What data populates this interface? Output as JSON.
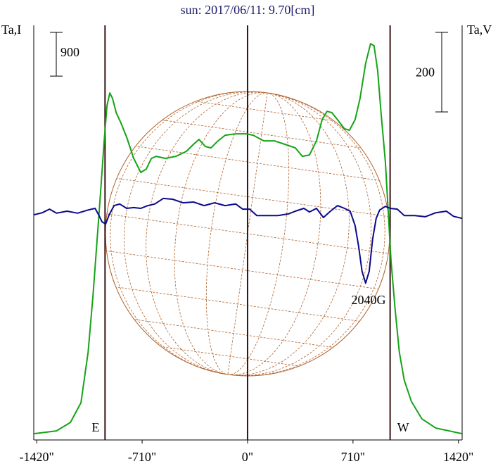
{
  "chart_data": {
    "type": "line",
    "title": "sun: 2017/06/11: 9.70[cm]",
    "ylabel": "Ta,I",
    "y2label": "Ta,V",
    "xlim": [
      -1440,
      1445
    ],
    "xticks": [
      {
        "value": -1420,
        "label": "-1420\""
      },
      {
        "value": -710,
        "label": "-710\""
      },
      {
        "value": 0,
        "label": "0\""
      },
      {
        "value": 710,
        "label": "710\""
      },
      {
        "value": 1420,
        "label": "1420\""
      }
    ],
    "ylim": [
      -100,
      8440
    ],
    "y2lim": [
      -566,
      476
    ],
    "scale_bars": [
      {
        "value": 900,
        "axis": "y"
      },
      {
        "value": 200,
        "axis": "y2"
      }
    ],
    "markers": [
      {
        "x": -960,
        "label": "E"
      },
      {
        "x": 0
      },
      {
        "x": 960,
        "label": "W"
      }
    ],
    "annotation": "2040G",
    "series": [
      {
        "name": "Ta,I",
        "color": "#16a316",
        "x": [
          -1439,
          -1287,
          -1193,
          -1122,
          -1074,
          -1041,
          -1013,
          -989,
          -966,
          -947,
          -928,
          -909,
          -885,
          -852,
          -814,
          -767,
          -719,
          -682,
          -648,
          -615,
          -554,
          -483,
          -412,
          -364,
          -327,
          -284,
          -246,
          -199,
          -151,
          -80,
          -9,
          38,
          109,
          180,
          251,
          322,
          369,
          417,
          464,
          502,
          535,
          568,
          606,
          653,
          686,
          724,
          757,
          795,
          828,
          852,
          876,
          899,
          928,
          947,
          966,
          994,
          1022,
          1055,
          1103,
          1174,
          1268,
          1444
        ],
        "values": [
          29,
          87,
          261,
          667,
          1711,
          2871,
          4031,
          5046,
          6061,
          6786,
          7047,
          6931,
          6641,
          6424,
          6134,
          5699,
          5409,
          5481,
          5699,
          5742,
          5699,
          5742,
          5844,
          5989,
          6090,
          5945,
          5916,
          6061,
          6177,
          6206,
          6206,
          6177,
          6061,
          6061,
          5989,
          5916,
          5742,
          5771,
          6061,
          6496,
          6670,
          6641,
          6496,
          6308,
          6279,
          6496,
          6931,
          7656,
          8062,
          8019,
          7511,
          6641,
          5626,
          4611,
          3596,
          2581,
          1711,
          1131,
          696,
          334,
          145,
          29
        ]
      },
      {
        "name": "Ta,V",
        "color": "#0a0a8c",
        "axis": "y2",
        "x": [
          -1439,
          -1382,
          -1334,
          -1287,
          -1216,
          -1145,
          -1074,
          -1027,
          -1003,
          -980,
          -956,
          -932,
          -899,
          -861,
          -814,
          -767,
          -719,
          -672,
          -625,
          -568,
          -506,
          -435,
          -364,
          -293,
          -222,
          -151,
          -80,
          -33,
          14,
          62,
          133,
          204,
          275,
          322,
          379,
          417,
          464,
          511,
          558,
          606,
          653,
          691,
          724,
          748,
          771,
          795,
          819,
          842,
          866,
          890,
          928,
          961,
          1008,
          1055,
          1126,
          1197,
          1268,
          1339,
          1387,
          1444
        ],
        "values": [
          0,
          5,
          14,
          4,
          9,
          4,
          12,
          16,
          0,
          -18,
          -23,
          0,
          23,
          27,
          16,
          18,
          16,
          23,
          27,
          41,
          39,
          30,
          32,
          23,
          30,
          23,
          27,
          14,
          14,
          -2,
          -2,
          -2,
          2,
          9,
          16,
          7,
          16,
          -7,
          9,
          23,
          16,
          9,
          -27,
          -80,
          -142,
          -172,
          -142,
          -62,
          -9,
          12,
          21,
          16,
          14,
          -2,
          -2,
          -5,
          5,
          9,
          -4,
          -9
        ]
      }
    ]
  }
}
